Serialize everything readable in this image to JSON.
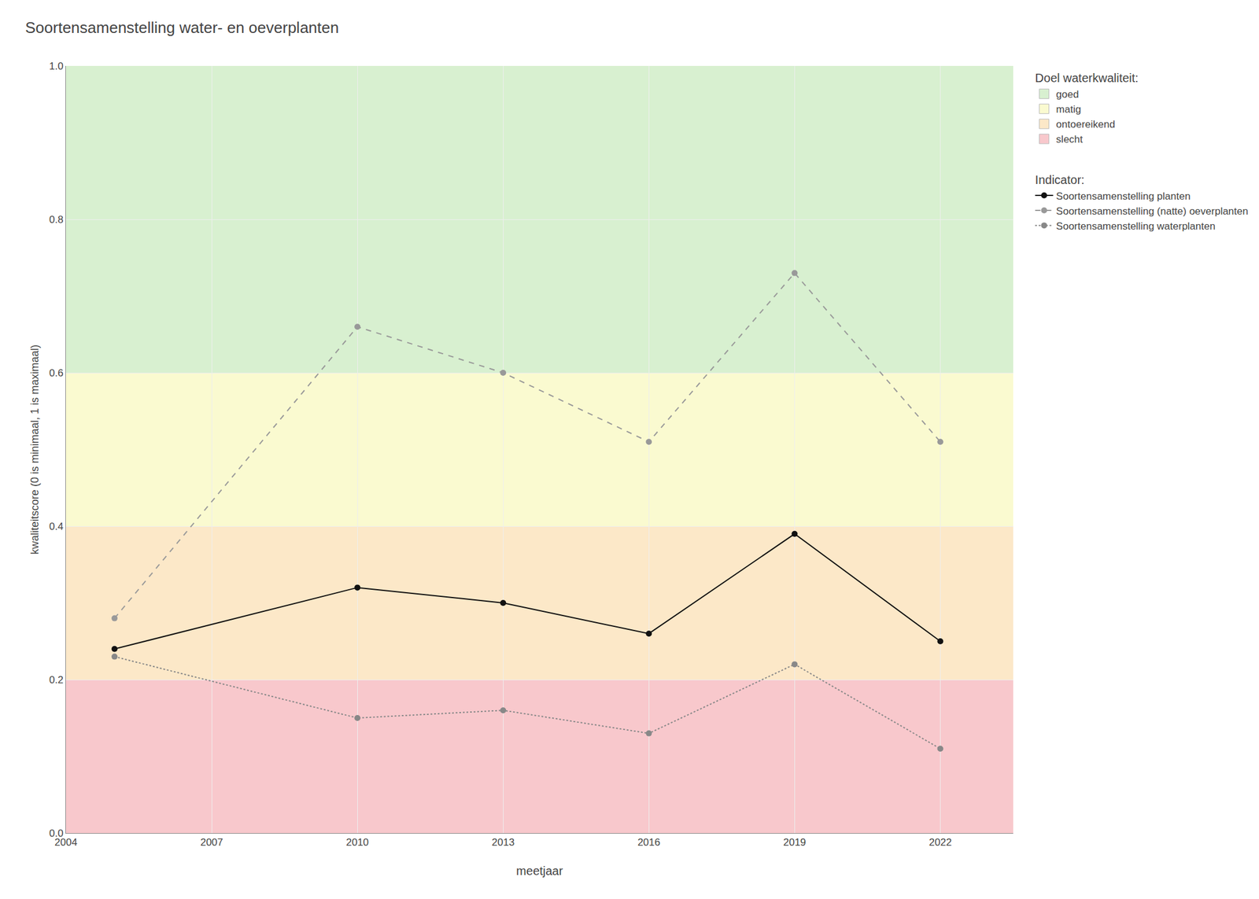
{
  "chart_data": {
    "type": "line",
    "title": "Soortensamenstelling water- en oeverplanten",
    "x_label": "meetjaar",
    "y_label": "kwaliteitscore (0 is minimaal, 1 is maximaal)",
    "xlim": [
      2004,
      2023.5
    ],
    "ylim": [
      0.0,
      1.0
    ],
    "xticks": [
      2004,
      2007,
      2010,
      2013,
      2016,
      2019,
      2022
    ],
    "yticks": [
      {
        "value": 0.0,
        "label": "0.0"
      },
      0.2,
      0.4,
      0.6,
      0.8,
      {
        "value": 1.0,
        "label": "1.0"
      }
    ],
    "grid": true,
    "legend": "right",
    "band_legend_title": "Doel waterkwaliteit:",
    "bands": [
      {
        "name": "goed",
        "from": 0.6,
        "to": 1.0,
        "color": "#d8f0d0"
      },
      {
        "name": "matig",
        "from": 0.4,
        "to": 0.6,
        "color": "#fafad0"
      },
      {
        "name": "ontoereikend",
        "from": 0.2,
        "to": 0.4,
        "color": "#fce8c8"
      },
      {
        "name": "slecht",
        "from": 0.0,
        "to": 0.2,
        "color": "#f8c8cc"
      }
    ],
    "series_legend_title": "Indicator:",
    "x": [
      2005,
      2010,
      2013,
      2016,
      2019,
      2022
    ],
    "series": [
      {
        "name": "Soortensamenstelling planten",
        "color": "#111111",
        "line_style": "solid",
        "marker": "circle",
        "values": [
          0.24,
          0.32,
          0.3,
          0.26,
          0.39,
          0.25
        ]
      },
      {
        "name": "Soortensamenstelling (natte) oeverplanten",
        "color": "#999999",
        "line_style": "dashed",
        "marker": "circle",
        "values": [
          0.28,
          0.66,
          0.6,
          0.51,
          0.73,
          0.51
        ]
      },
      {
        "name": "Soortensamenstelling waterplanten",
        "color": "#888888",
        "line_style": "dotted",
        "marker": "circle",
        "values": [
          0.23,
          0.15,
          0.16,
          0.13,
          0.22,
          0.11
        ]
      }
    ]
  }
}
